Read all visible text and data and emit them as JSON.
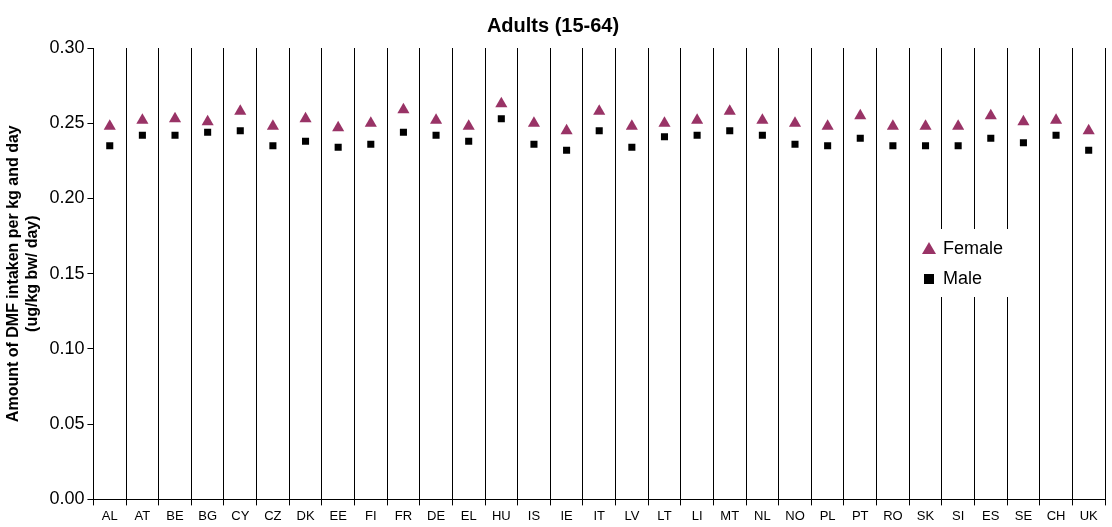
{
  "chart_data": {
    "type": "scatter",
    "title": "Adults (15-64)",
    "ylabel": "Amount of DMF intaken per kg and day\n(ug/kg bw/ day)",
    "categories": [
      "AL",
      "AT",
      "BE",
      "BG",
      "CY",
      "CZ",
      "DK",
      "EE",
      "FI",
      "FR",
      "DE",
      "EL",
      "HU",
      "IS",
      "IE",
      "IT",
      "LV",
      "LT",
      "LI",
      "MT",
      "NL",
      "NO",
      "PL",
      "PT",
      "RO",
      "SK",
      "SI",
      "ES",
      "SE",
      "CH",
      "UK"
    ],
    "series": [
      {
        "name": "Female",
        "color": "#993366",
        "marker": "triangle",
        "values": [
          0.248,
          0.252,
          0.253,
          0.251,
          0.258,
          0.248,
          0.253,
          0.247,
          0.25,
          0.259,
          0.252,
          0.248,
          0.263,
          0.25,
          0.245,
          0.258,
          0.248,
          0.25,
          0.252,
          0.258,
          0.252,
          0.25,
          0.248,
          0.255,
          0.248,
          0.248,
          0.248,
          0.255,
          0.251,
          0.252,
          0.245
        ]
      },
      {
        "name": "Male",
        "color": "#000000",
        "marker": "square",
        "values": [
          0.235,
          0.242,
          0.242,
          0.244,
          0.245,
          0.235,
          0.238,
          0.234,
          0.236,
          0.244,
          0.242,
          0.238,
          0.253,
          0.236,
          0.232,
          0.245,
          0.234,
          0.241,
          0.242,
          0.245,
          0.242,
          0.236,
          0.235,
          0.24,
          0.235,
          0.235,
          0.235,
          0.24,
          0.237,
          0.242,
          0.232
        ]
      }
    ],
    "ylim": [
      0,
      0.3
    ],
    "yticks": [
      {
        "value": 0,
        "label": "0.00"
      },
      {
        "value": 0.05,
        "label": "0.05"
      },
      {
        "value": 0.1,
        "label": "0.10"
      },
      {
        "value": 0.15,
        "label": "0.15"
      },
      {
        "value": 0.2,
        "label": "0.20"
      },
      {
        "value": 0.25,
        "label": "0.25"
      },
      {
        "value": 0.3,
        "label": "0.30"
      }
    ],
    "grid": "x",
    "legend": "right"
  }
}
